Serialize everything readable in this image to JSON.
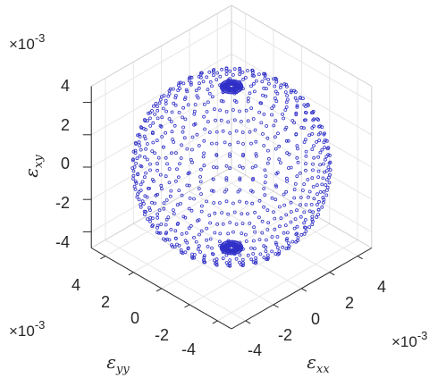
{
  "chart_data": {
    "type": "scatter",
    "projection": "3d-isometric",
    "title": "",
    "xlabel": "ε_xx",
    "ylabel": "ε_yy",
    "zlabel": "ε_xy",
    "label_symbol": "ε",
    "label_subscripts": {
      "x": "xx",
      "y": "yy",
      "z": "xy"
    },
    "multiplier": "×10",
    "multiplier_exponent": "-3",
    "x_ticks": [
      "-4",
      "-2",
      "0",
      "2",
      "4"
    ],
    "y_ticks": [
      "-4",
      "-2",
      "0",
      "2",
      "4"
    ],
    "z_ticks": [
      "-4",
      "-2",
      "0",
      "2",
      "4"
    ],
    "xlim": [
      -5,
      5
    ],
    "ylim": [
      -5,
      5
    ],
    "zlim": [
      -5,
      5
    ],
    "sphere": {
      "radius": 5,
      "center": [
        0,
        0,
        0
      ],
      "point_rings": 26,
      "marker": "circle"
    },
    "grid": true,
    "box": true,
    "series_color": "#3030c8"
  }
}
